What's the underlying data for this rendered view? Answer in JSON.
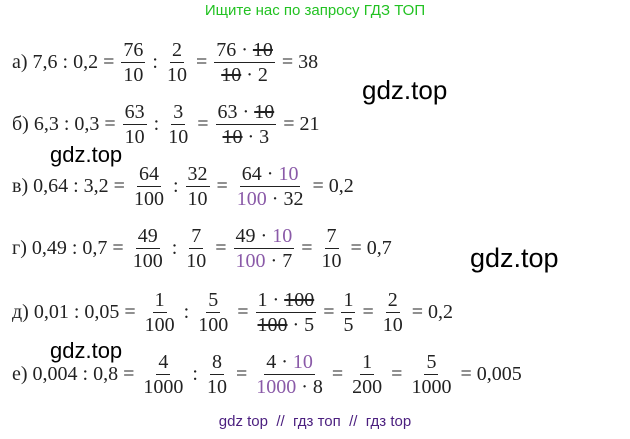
{
  "header": {
    "text": "Ищите нас по запросу ГДЗ ТОП"
  },
  "watermarks": [
    "gdz.top",
    "gdz.top",
    "gdz.top",
    "gdz.top"
  ],
  "rows": [
    [
      "а) 7,6 : 0,2 =",
      {
        "num": [
          "76"
        ],
        "den": [
          "10"
        ]
      },
      ":",
      {
        "num": [
          "2"
        ],
        "den": [
          "10"
        ]
      },
      "=",
      {
        "num": [
          "76 · ",
          {
            "text": "10",
            "style": "strike"
          }
        ],
        "den": [
          {
            "text": "10",
            "style": "strike"
          },
          " · 2"
        ]
      },
      "= 38"
    ],
    [
      "б) 6,3 : 0,3 =",
      {
        "num": [
          "63"
        ],
        "den": [
          "10"
        ]
      },
      ":",
      {
        "num": [
          "3"
        ],
        "den": [
          "10"
        ]
      },
      "=",
      {
        "num": [
          "63 · ",
          {
            "text": "10",
            "style": "strike"
          }
        ],
        "den": [
          {
            "text": "10",
            "style": "strike"
          },
          " · 3"
        ]
      },
      "= 21"
    ],
    [
      "в) 0,64 : 3,2 =",
      {
        "num": [
          "64"
        ],
        "den": [
          "100"
        ]
      },
      ":",
      {
        "num": [
          "32"
        ],
        "den": [
          "10"
        ]
      },
      "=",
      {
        "num": [
          "64 · ",
          {
            "text": "10",
            "style": "purple"
          }
        ],
        "den": [
          {
            "text": "100",
            "style": "purple"
          },
          " · 32"
        ]
      },
      "= 0,2"
    ],
    [
      "г) 0,49 : 0,7 =",
      {
        "num": [
          "49"
        ],
        "den": [
          "100"
        ]
      },
      ":",
      {
        "num": [
          "7"
        ],
        "den": [
          "10"
        ]
      },
      "=",
      {
        "num": [
          "49 · ",
          {
            "text": "10",
            "style": "purple"
          }
        ],
        "den": [
          {
            "text": "100",
            "style": "purple"
          },
          " · 7"
        ]
      },
      "=",
      {
        "num": [
          "7"
        ],
        "den": [
          "10"
        ]
      },
      "= 0,7"
    ],
    [
      "д) 0,01 : 0,05 =",
      {
        "num": [
          "1"
        ],
        "den": [
          "100"
        ]
      },
      ":",
      {
        "num": [
          "5"
        ],
        "den": [
          "100"
        ]
      },
      "=",
      {
        "num": [
          "1 · ",
          {
            "text": "100",
            "style": "strike"
          }
        ],
        "den": [
          {
            "text": "100",
            "style": "strike"
          },
          " · 5"
        ]
      },
      "=",
      {
        "num": [
          "1"
        ],
        "den": [
          "5"
        ]
      },
      "=",
      {
        "num": [
          "2"
        ],
        "den": [
          "10"
        ]
      },
      "= 0,2"
    ],
    [
      "е) 0,004 : 0,8 =",
      {
        "num": [
          "4"
        ],
        "den": [
          "1000"
        ]
      },
      ":",
      {
        "num": [
          "8"
        ],
        "den": [
          "10"
        ]
      },
      "=",
      {
        "num": [
          "4 · ",
          {
            "text": "10",
            "style": "purple"
          }
        ],
        "den": [
          {
            "text": "1000",
            "style": "purple"
          },
          " · 8"
        ]
      },
      "=",
      {
        "num": [
          "1"
        ],
        "den": [
          "200"
        ]
      },
      "=",
      {
        "num": [
          "5"
        ],
        "den": [
          "1000"
        ]
      },
      "= 0,005"
    ]
  ],
  "footer": {
    "text": "gdz top  //  гдз топ  //  гдз top"
  }
}
